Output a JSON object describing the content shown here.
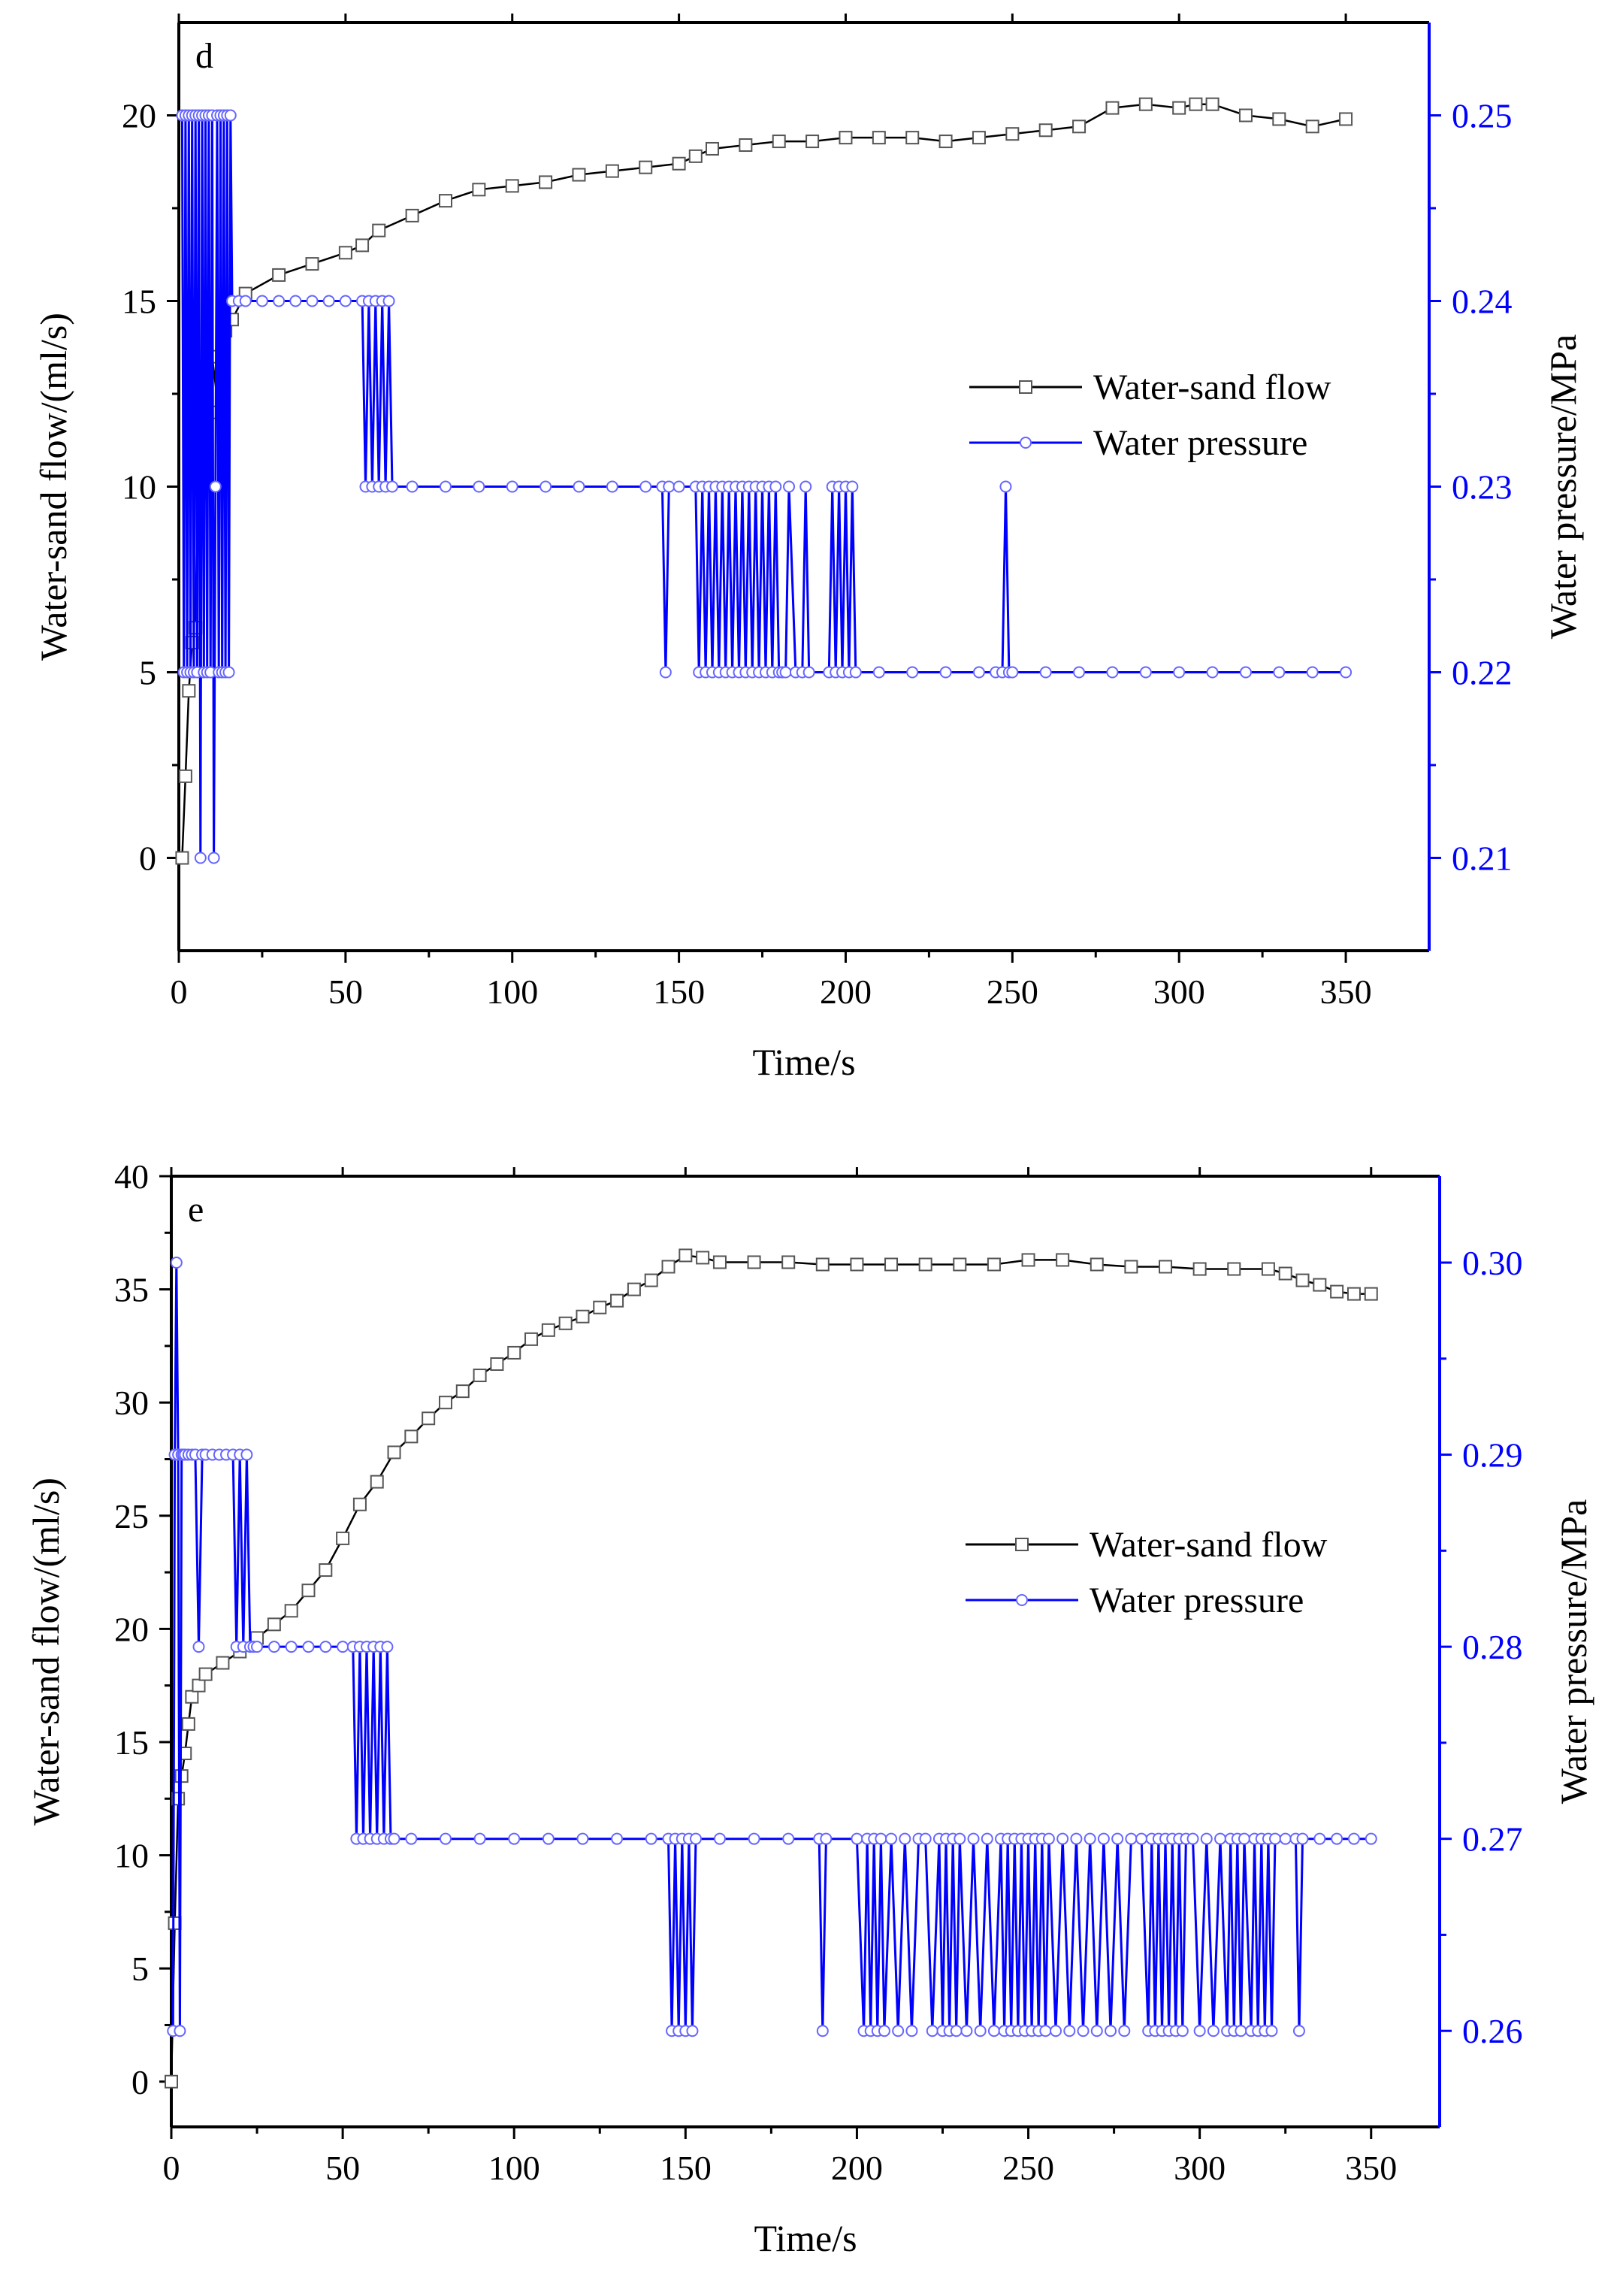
{
  "chart_data": [
    {
      "type": "line",
      "panel_label": "d",
      "xlabel": "Time/s",
      "ylabel": "Water-sand flow/(ml/s)",
      "y2label": "Water pressure/MPa",
      "xlim": [
        0,
        375
      ],
      "ylim": [
        -2.5,
        22.5
      ],
      "y2lim": [
        0.205,
        0.255
      ],
      "xticks": [
        0,
        50,
        100,
        150,
        200,
        250,
        300,
        350
      ],
      "yticks": [
        0,
        5,
        10,
        15,
        20
      ],
      "y2ticks": [
        0.21,
        0.22,
        0.23,
        0.24,
        0.25
      ],
      "y2tick_labels": [
        "0.21",
        "0.22",
        "0.23",
        "0.24",
        "0.25"
      ],
      "legend": {
        "placement": "right-middle",
        "entries": [
          "Water-sand flow",
          "Water pressure"
        ]
      },
      "series": [
        {
          "name": "Water-sand flow",
          "axis": "left",
          "color": "#000000",
          "marker": "square",
          "x": [
            1,
            2,
            3,
            4,
            5,
            6,
            8,
            10,
            12,
            14,
            16,
            20,
            30,
            40,
            50,
            55,
            60,
            70,
            80,
            90,
            100,
            110,
            120,
            130,
            140,
            150,
            155,
            160,
            170,
            180,
            190,
            200,
            210,
            220,
            230,
            240,
            250,
            260,
            270,
            280,
            290,
            300,
            305,
            310,
            320,
            330,
            340,
            350
          ],
          "values": [
            0,
            2.2,
            4.5,
            5.8,
            6.2,
            12,
            12.2,
            13.5,
            12,
            14.2,
            14.5,
            15.2,
            15.7,
            16.0,
            16.3,
            16.5,
            16.9,
            17.3,
            17.7,
            18.0,
            18.1,
            18.2,
            18.4,
            18.5,
            18.6,
            18.7,
            18.9,
            19.1,
            19.2,
            19.3,
            19.3,
            19.4,
            19.4,
            19.4,
            19.3,
            19.4,
            19.5,
            19.6,
            19.7,
            20.2,
            20.3,
            20.2,
            20.3,
            20.3,
            20.0,
            19.9,
            19.7,
            19.9
          ]
        },
        {
          "name": "Water pressure",
          "axis": "right",
          "color": "#0000ff",
          "marker": "circle",
          "x": [
            1,
            1.5,
            2,
            2.5,
            3,
            3.5,
            4,
            4.5,
            5,
            5.5,
            6,
            6.5,
            7,
            7.5,
            8,
            8.5,
            9,
            9.5,
            10,
            10.5,
            11,
            11.5,
            12,
            12.5,
            13,
            13.5,
            14,
            14.5,
            15,
            15.5,
            16,
            18,
            20,
            25,
            30,
            35,
            40,
            45,
            50,
            55,
            56,
            57,
            58,
            59,
            60,
            61,
            62,
            63,
            64,
            70,
            80,
            90,
            100,
            110,
            120,
            130,
            140,
            145,
            146,
            147,
            150,
            155,
            156,
            157,
            158,
            159,
            160,
            161,
            162,
            163,
            164,
            165,
            166,
            167,
            168,
            169,
            170,
            171,
            172,
            173,
            174,
            175,
            176,
            177,
            178,
            179,
            180,
            181,
            182,
            183,
            185,
            187,
            188,
            189,
            195,
            196,
            197,
            198,
            199,
            200,
            201,
            202,
            203,
            210,
            220,
            230,
            240,
            245,
            247,
            248,
            249,
            250,
            260,
            270,
            280,
            290,
            300,
            310,
            320,
            330,
            340,
            350
          ],
          "values": [
            0.25,
            0.22,
            0.25,
            0.22,
            0.25,
            0.22,
            0.25,
            0.22,
            0.25,
            0.22,
            0.25,
            0.21,
            0.25,
            0.22,
            0.25,
            0.22,
            0.25,
            0.22,
            0.25,
            0.21,
            0.23,
            0.25,
            0.22,
            0.25,
            0.22,
            0.25,
            0.22,
            0.25,
            0.22,
            0.25,
            0.24,
            0.24,
            0.24,
            0.24,
            0.24,
            0.24,
            0.24,
            0.24,
            0.24,
            0.24,
            0.23,
            0.24,
            0.23,
            0.24,
            0.23,
            0.24,
            0.23,
            0.24,
            0.23,
            0.23,
            0.23,
            0.23,
            0.23,
            0.23,
            0.23,
            0.23,
            0.23,
            0.23,
            0.22,
            0.23,
            0.23,
            0.23,
            0.22,
            0.23,
            0.22,
            0.23,
            0.22,
            0.23,
            0.22,
            0.23,
            0.22,
            0.23,
            0.22,
            0.23,
            0.22,
            0.23,
            0.22,
            0.23,
            0.22,
            0.23,
            0.22,
            0.23,
            0.22,
            0.23,
            0.22,
            0.23,
            0.22,
            0.22,
            0.22,
            0.23,
            0.22,
            0.22,
            0.23,
            0.22,
            0.22,
            0.23,
            0.22,
            0.23,
            0.22,
            0.23,
            0.22,
            0.23,
            0.22,
            0.22,
            0.22,
            0.22,
            0.22,
            0.22,
            0.22,
            0.23,
            0.22,
            0.22,
            0.22,
            0.22,
            0.22,
            0.22,
            0.22,
            0.22,
            0.22,
            0.22,
            0.22,
            0.22
          ]
        }
      ]
    },
    {
      "type": "line",
      "panel_label": "e",
      "xlabel": "Time/s",
      "ylabel": "Water-sand flow/(ml/s)",
      "y2label": "Water pressure/MPa",
      "xlim": [
        0,
        370
      ],
      "ylim": [
        -2,
        40
      ],
      "y2lim": [
        0.255,
        0.3045
      ],
      "xticks": [
        0,
        50,
        100,
        150,
        200,
        250,
        300,
        350
      ],
      "yticks": [
        0,
        5,
        10,
        15,
        20,
        25,
        30,
        35,
        40
      ],
      "y2ticks": [
        0.26,
        0.27,
        0.28,
        0.29,
        0.3
      ],
      "y2tick_labels": [
        "0.26",
        "0.27",
        "0.28",
        "0.29",
        "0.30"
      ],
      "legend": {
        "placement": "right-middle",
        "entries": [
          "Water-sand flow",
          "Water pressure"
        ]
      },
      "series": [
        {
          "name": "Water-sand flow",
          "axis": "left",
          "color": "#000000",
          "marker": "square",
          "x": [
            0,
            1,
            2,
            3,
            4,
            5,
            6,
            8,
            10,
            15,
            20,
            25,
            30,
            35,
            40,
            45,
            50,
            55,
            60,
            65,
            70,
            75,
            80,
            85,
            90,
            95,
            100,
            105,
            110,
            115,
            120,
            125,
            130,
            135,
            140,
            145,
            150,
            155,
            160,
            170,
            180,
            190,
            200,
            210,
            220,
            230,
            240,
            250,
            260,
            270,
            280,
            290,
            300,
            310,
            320,
            325,
            330,
            335,
            340,
            345,
            350
          ],
          "values": [
            0,
            7,
            12.5,
            13.5,
            14.5,
            15.8,
            17,
            17.5,
            18,
            18.5,
            19,
            19.6,
            20.2,
            20.8,
            21.7,
            22.6,
            24,
            25.5,
            26.5,
            27.8,
            28.5,
            29.3,
            30,
            30.5,
            31.2,
            31.7,
            32.2,
            32.8,
            33.2,
            33.5,
            33.8,
            34.2,
            34.5,
            35,
            35.4,
            36,
            36.5,
            36.4,
            36.2,
            36.2,
            36.2,
            36.1,
            36.1,
            36.1,
            36.1,
            36.1,
            36.1,
            36.3,
            36.3,
            36.1,
            36,
            36,
            35.9,
            35.9,
            35.9,
            35.7,
            35.4,
            35.2,
            34.9,
            34.8,
            34.8
          ]
        },
        {
          "name": "Water pressure",
          "axis": "right",
          "color": "#0000ff",
          "marker": "circle",
          "x": [
            0.5,
            1,
            1.5,
            2,
            2.5,
            3,
            3.5,
            4,
            5,
            6,
            7,
            8,
            9,
            10,
            12,
            14,
            16,
            18,
            19,
            20,
            21,
            22,
            23,
            24,
            25,
            30,
            35,
            40,
            45,
            50,
            53,
            54,
            55,
            56,
            57,
            58,
            59,
            60,
            61,
            62,
            63,
            64,
            65,
            70,
            80,
            90,
            100,
            110,
            120,
            130,
            140,
            145,
            146,
            147,
            148,
            149,
            150,
            151,
            152,
            153,
            160,
            170,
            180,
            189,
            190,
            191,
            200,
            202,
            203,
            204,
            205,
            206,
            207,
            208,
            210,
            212,
            214,
            216,
            218,
            220,
            222,
            224,
            225,
            226,
            227,
            228,
            229,
            230,
            232,
            234,
            236,
            238,
            240,
            242,
            243,
            244,
            245,
            246,
            247,
            248,
            249,
            250,
            251,
            252,
            253,
            254,
            255,
            256,
            258,
            260,
            262,
            264,
            266,
            268,
            270,
            272,
            274,
            276,
            278,
            280,
            283,
            285,
            286,
            287,
            288,
            289,
            290,
            291,
            292,
            293,
            294,
            295,
            296,
            298,
            300,
            302,
            304,
            306,
            308,
            309,
            310,
            311,
            312,
            313,
            315,
            316,
            317,
            318,
            319,
            320,
            321,
            322,
            325,
            328,
            329,
            330,
            335,
            340,
            345,
            350
          ],
          "values": [
            0.26,
            0.29,
            0.3,
            0.29,
            0.26,
            0.29,
            0.29,
            0.29,
            0.29,
            0.29,
            0.29,
            0.28,
            0.29,
            0.29,
            0.29,
            0.29,
            0.29,
            0.29,
            0.28,
            0.29,
            0.28,
            0.29,
            0.28,
            0.28,
            0.28,
            0.28,
            0.28,
            0.28,
            0.28,
            0.28,
            0.28,
            0.27,
            0.28,
            0.27,
            0.28,
            0.27,
            0.28,
            0.27,
            0.28,
            0.27,
            0.28,
            0.27,
            0.27,
            0.27,
            0.27,
            0.27,
            0.27,
            0.27,
            0.27,
            0.27,
            0.27,
            0.27,
            0.26,
            0.27,
            0.26,
            0.27,
            0.26,
            0.27,
            0.26,
            0.27,
            0.27,
            0.27,
            0.27,
            0.27,
            0.26,
            0.27,
            0.27,
            0.26,
            0.27,
            0.26,
            0.27,
            0.26,
            0.27,
            0.26,
            0.27,
            0.26,
            0.27,
            0.26,
            0.27,
            0.27,
            0.26,
            0.27,
            0.26,
            0.27,
            0.26,
            0.27,
            0.26,
            0.27,
            0.26,
            0.27,
            0.26,
            0.27,
            0.26,
            0.27,
            0.26,
            0.27,
            0.26,
            0.27,
            0.26,
            0.27,
            0.26,
            0.27,
            0.26,
            0.27,
            0.26,
            0.27,
            0.26,
            0.27,
            0.26,
            0.27,
            0.26,
            0.27,
            0.26,
            0.27,
            0.26,
            0.27,
            0.26,
            0.27,
            0.26,
            0.27,
            0.27,
            0.26,
            0.27,
            0.26,
            0.27,
            0.26,
            0.27,
            0.26,
            0.27,
            0.26,
            0.27,
            0.26,
            0.27,
            0.27,
            0.26,
            0.27,
            0.26,
            0.27,
            0.26,
            0.27,
            0.26,
            0.27,
            0.26,
            0.27,
            0.26,
            0.27,
            0.26,
            0.27,
            0.26,
            0.27,
            0.26,
            0.27,
            0.27,
            0.27,
            0.26,
            0.27,
            0.27,
            0.27,
            0.27,
            0.27
          ]
        }
      ]
    }
  ]
}
